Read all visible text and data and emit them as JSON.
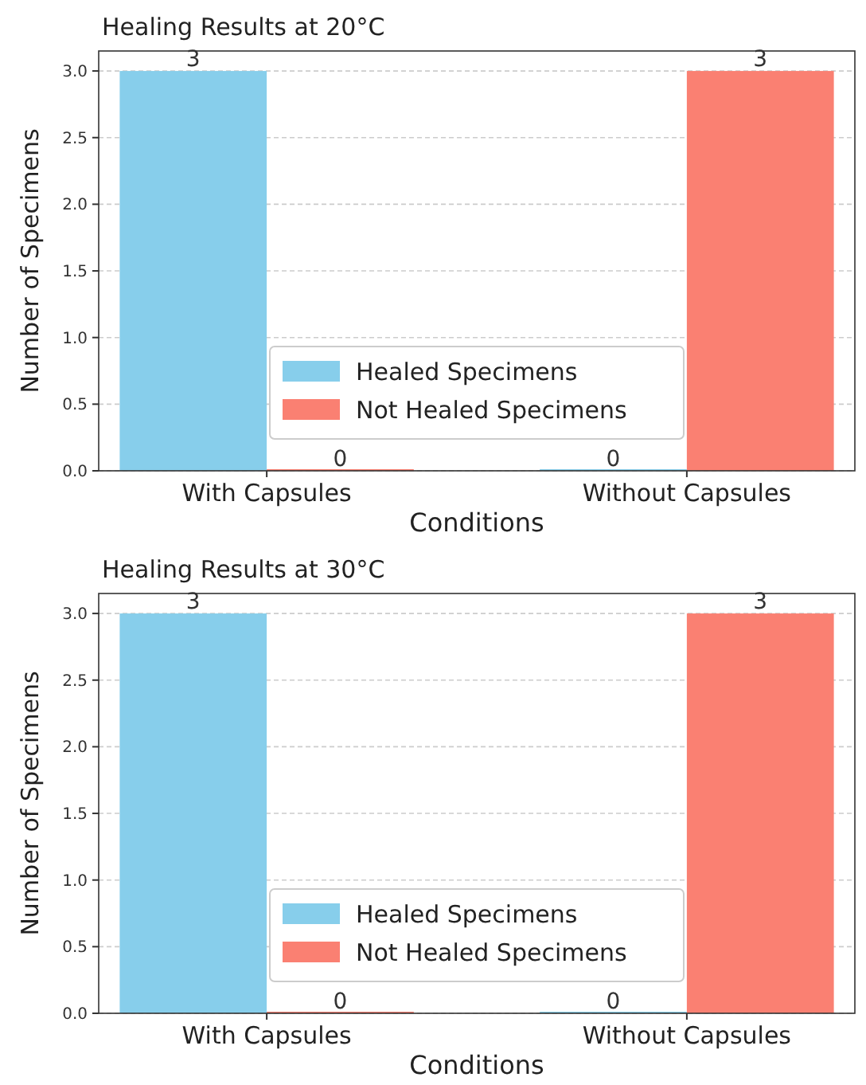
{
  "chart_data": [
    {
      "type": "bar",
      "title": "Healing Results at 20°C",
      "xlabel": "Conditions",
      "ylabel": "Number of Specimens",
      "categories": [
        "With Capsules",
        "Without Capsules"
      ],
      "series": [
        {
          "name": "Healed Specimens",
          "color": "#87ceeb",
          "values": [
            3,
            0
          ]
        },
        {
          "name": "Not Healed Specimens",
          "color": "#fa8072",
          "values": [
            0,
            3
          ]
        }
      ],
      "ylim": [
        0,
        3.15
      ],
      "yticks": [
        {
          "value": 0,
          "label": "0.0"
        },
        {
          "value": 0.5,
          "label": "0.5"
        },
        {
          "value": 1,
          "label": "1.0"
        },
        {
          "value": 1.5,
          "label": "1.5"
        },
        {
          "value": 2,
          "label": "2.0"
        },
        {
          "value": 2.5,
          "label": "2.5"
        },
        {
          "value": 3,
          "label": "3.0"
        }
      ],
      "grid": "y",
      "legend": "bottom",
      "data_labels": true
    },
    {
      "type": "bar",
      "title": "Healing Results at 30°C",
      "xlabel": "Conditions",
      "ylabel": "Number of Specimens",
      "categories": [
        "With Capsules",
        "Without Capsules"
      ],
      "series": [
        {
          "name": "Healed Specimens",
          "color": "#87ceeb",
          "values": [
            3,
            0
          ]
        },
        {
          "name": "Not Healed Specimens",
          "color": "#fa8072",
          "values": [
            0,
            3
          ]
        }
      ],
      "ylim": [
        0,
        3.15
      ],
      "yticks": [
        {
          "value": 0,
          "label": "0.0"
        },
        {
          "value": 0.5,
          "label": "0.5"
        },
        {
          "value": 1,
          "label": "1.0"
        },
        {
          "value": 1.5,
          "label": "1.5"
        },
        {
          "value": 2,
          "label": "2.0"
        },
        {
          "value": 2.5,
          "label": "2.5"
        },
        {
          "value": 3,
          "label": "3.0"
        }
      ],
      "grid": "y",
      "legend": "bottom",
      "data_labels": true
    }
  ]
}
